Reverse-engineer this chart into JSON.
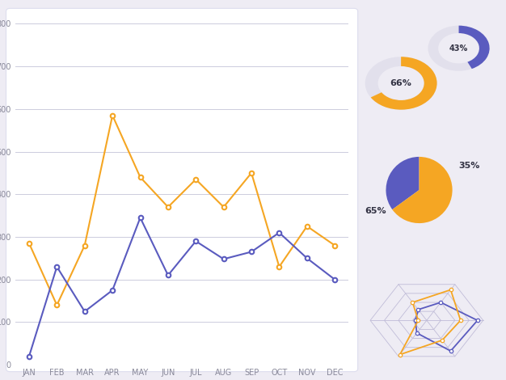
{
  "bg_color": "#eeecf4",
  "card_color": "#ffffff",
  "purple": "#5a5bbf",
  "orange": "#f5a623",
  "gray_grid": "#ccccdd",
  "months": [
    "JAN",
    "FEB",
    "MAR",
    "APR",
    "MAY",
    "JUN",
    "JUL",
    "AUG",
    "SEP",
    "OCT",
    "NOV",
    "DEC"
  ],
  "line_purple": [
    20,
    230,
    125,
    175,
    345,
    210,
    290,
    248,
    265,
    310,
    250,
    200
  ],
  "line_orange": [
    285,
    140,
    280,
    585,
    440,
    370,
    435,
    370,
    450,
    230,
    325,
    280
  ],
  "donut1_pct": 43,
  "donut1_label": "43%",
  "donut2_pct": 66,
  "donut2_label": "66%",
  "pie1_pct": 35,
  "pie1_label": "35%",
  "pie2_label": "65%",
  "radar_purple": [
    0.9,
    0.5,
    0.3,
    0.2,
    0.35,
    0.85
  ],
  "radar_orange": [
    0.6,
    0.85,
    0.5,
    0.15,
    0.95,
    0.55
  ]
}
